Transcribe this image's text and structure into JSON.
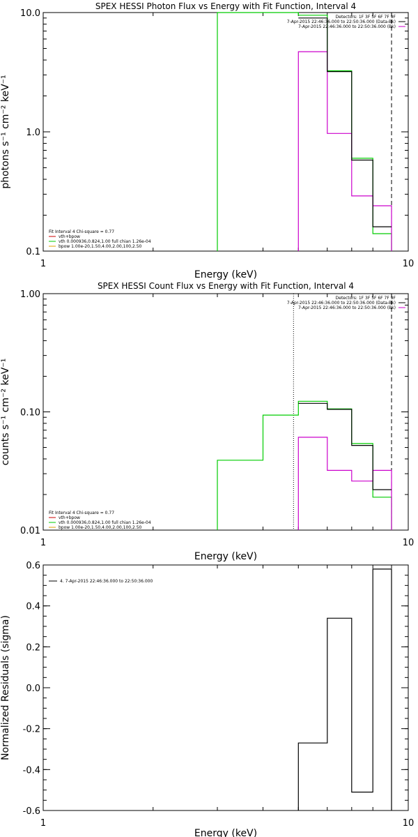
{
  "colors": {
    "data": "#000000",
    "background": "#cc00cc",
    "model_total": "#cc0000",
    "vth": "#00cc00",
    "bpow": "#e0a000",
    "frame": "#000000"
  },
  "chart_data": [
    {
      "type": "line",
      "title": "SPEX HESSI Photon Flux vs Energy with Fit Function, Interval 4",
      "xlabel": "Energy (keV)",
      "ylabel": "photons s⁻¹ cm⁻² keV⁻¹",
      "xscale": "log",
      "yscale": "log",
      "xlim": [
        1,
        10
      ],
      "ylim": [
        0.1,
        10
      ],
      "xticks": [
        {
          "v": 1,
          "label": "1"
        },
        {
          "v": 10,
          "label": "10"
        }
      ],
      "yticks": [
        {
          "v": 0.1,
          "label": "0.1"
        },
        {
          "v": 1,
          "label": "1.0"
        },
        {
          "v": 10,
          "label": "10.0"
        }
      ],
      "legend_right": [
        "Detectors: 1F 3F 5F 6F 7F 9F",
        "7-Apr-2015 22:46:36.000 to 22:50:36.000 (Data-Bk)",
        "7-Apr-2015 22:46:36.000 to 22:50:36.000 (Bk)"
      ],
      "legend_left": [
        "Fit Interval 4    Chi-square = 0.77",
        "vth+bpow",
        "vth 0.000936,0.824,1.00  full chian 1.26e-04",
        "bpow 1.00e-20,1.50,4.00,2.00,100,2.50"
      ],
      "vlines": [
        {
          "x": 9.0,
          "style": "dashed"
        }
      ],
      "series": [
        {
          "name": "Data-Bk",
          "role": "data",
          "edges": [
            5,
            6,
            7,
            8,
            9
          ],
          "values": [
            9.0,
            3.2,
            0.58,
            0.16
          ]
        },
        {
          "name": "Bk",
          "role": "background",
          "edges": [
            5,
            6,
            7,
            8,
            9
          ],
          "values": [
            4.7,
            0.97,
            0.29,
            0.24
          ],
          "drop_to_floor": true
        },
        {
          "name": "vth 0.000936,0.824,1.00  full chian 1.26e-04",
          "role": "vth",
          "edges": [
            3,
            5,
            6,
            7,
            8,
            9
          ],
          "values": [
            10.0,
            9.5,
            3.25,
            0.6,
            0.14
          ],
          "drop_to_floor": true
        }
      ]
    },
    {
      "type": "line",
      "title": "SPEX HESSI Count Flux vs Energy with Fit Function, Interval 4",
      "xlabel": "Energy (keV)",
      "ylabel": "counts s⁻¹ cm⁻² keV⁻¹",
      "xscale": "log",
      "yscale": "log",
      "xlim": [
        1,
        10
      ],
      "ylim": [
        0.01,
        1
      ],
      "xticks": [
        {
          "v": 1,
          "label": "1"
        },
        {
          "v": 10,
          "label": "10"
        }
      ],
      "yticks": [
        {
          "v": 0.01,
          "label": "0.01"
        },
        {
          "v": 0.1,
          "label": "0.10"
        },
        {
          "v": 1,
          "label": "1.00"
        }
      ],
      "legend_right": [
        "Detectors: 1F 3F 5F 6F 7F 9F",
        "7-Apr-2015 22:46:36.000 to 22:50:36.000 (Data-Bk)",
        "7-Apr-2015 22:46:36.000 to 22:50:36.000 (Bk)"
      ],
      "legend_left": [
        "Fit Interval 4    Chi-square = 0.77",
        "vth+bpow",
        "vth 0.000936,0.824,1.00  full chian 1.26e-04",
        "bpow 1.00e-20,1.50,4.00,2.00,100,2.50"
      ],
      "vlines": [
        {
          "x": 4.85,
          "style": "dotted"
        },
        {
          "x": 9.0,
          "style": "dashed"
        }
      ],
      "series": [
        {
          "name": "Data-Bk",
          "role": "data",
          "edges": [
            5,
            6,
            7,
            8,
            9
          ],
          "values": [
            0.118,
            0.105,
            0.052,
            0.022
          ]
        },
        {
          "name": "Bk",
          "role": "background",
          "edges": [
            5,
            6,
            7,
            8,
            9
          ],
          "values": [
            0.061,
            0.032,
            0.026,
            0.032
          ],
          "drop_to_floor": true
        },
        {
          "name": "vth 0.000936,0.824,1.00  full chian 1.26e-04",
          "role": "vth",
          "edges": [
            3,
            4,
            5,
            6,
            7,
            8,
            9
          ],
          "values": [
            0.039,
            0.094,
            0.123,
            0.106,
            0.054,
            0.019
          ],
          "drop_to_floor": true
        }
      ]
    },
    {
      "type": "line",
      "title": "",
      "xlabel": "Energy (keV)",
      "ylabel": "Normalized Residuals (sigma)",
      "xscale": "log",
      "yscale": "linear",
      "xlim": [
        1,
        10
      ],
      "ylim": [
        -0.6,
        0.6
      ],
      "xticks": [
        {
          "v": 1,
          "label": "1"
        },
        {
          "v": 10,
          "label": "10"
        }
      ],
      "yticks": [
        {
          "v": -0.6,
          "label": "-0.6"
        },
        {
          "v": -0.4,
          "label": "-0.4"
        },
        {
          "v": -0.2,
          "label": "-0.2"
        },
        {
          "v": 0.0,
          "label": "0.0"
        },
        {
          "v": 0.2,
          "label": "0.2"
        },
        {
          "v": 0.4,
          "label": "0.4"
        },
        {
          "v": 0.6,
          "label": "0.6"
        }
      ],
      "legend_right": [],
      "legend_left": [],
      "legend_top": "4.  7-Apr-2015 22:46:36.000 to 22:50:36.000",
      "vlines": [],
      "series": [
        {
          "name": "4.  7-Apr-2015 22:46:36.000 to 22:50:36.000",
          "role": "data",
          "edges": [
            5,
            6,
            7,
            8,
            9
          ],
          "values": [
            -0.27,
            0.34,
            -0.51,
            0.58
          ],
          "drop_to_floor": true
        }
      ]
    }
  ]
}
